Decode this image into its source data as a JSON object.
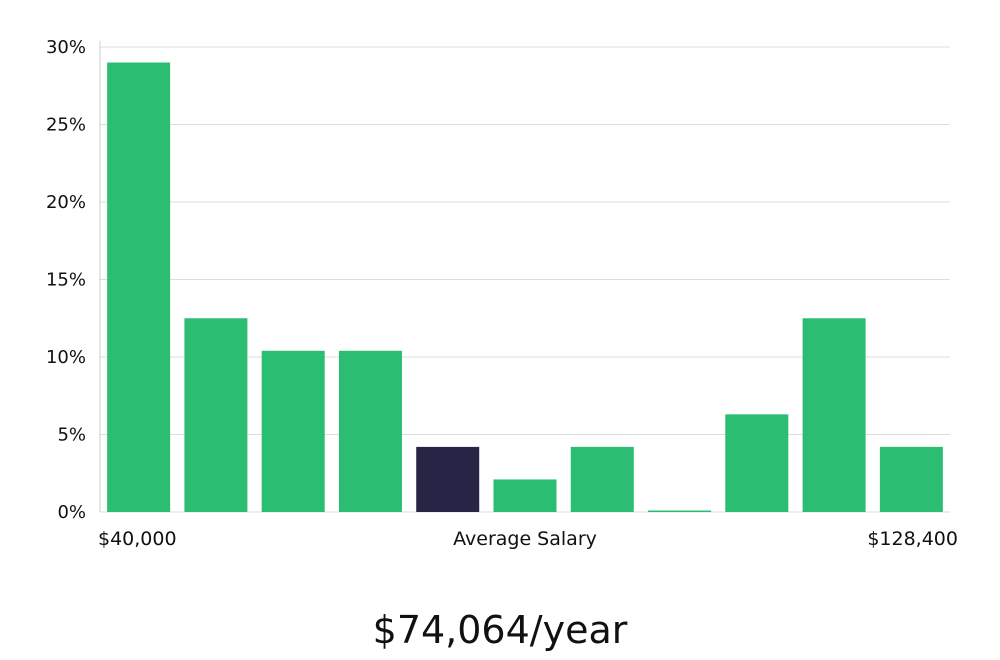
{
  "chart_data": {
    "type": "bar",
    "values": [
      29,
      12.5,
      10.4,
      10.4,
      4.2,
      2.1,
      4.2,
      0,
      6.3,
      12.5,
      4.2
    ],
    "highlight_index": 4,
    "ylim": [
      0,
      30
    ],
    "yticks": [
      "0%",
      "5%",
      "10%",
      "15%",
      "20%",
      "25%",
      "30%"
    ],
    "ytick_values": [
      0,
      5,
      10,
      15,
      20,
      25,
      30
    ],
    "grid": true,
    "x_min_label": "$40,000",
    "x_mid_label": "Average Salary",
    "x_max_label": "$128,400",
    "colors": {
      "bar": "#2bbd72",
      "highlight": "#262545",
      "grid": "#dddddd",
      "axis": "#cccccc"
    }
  },
  "summary": {
    "salary_text": "$74,064/year"
  }
}
